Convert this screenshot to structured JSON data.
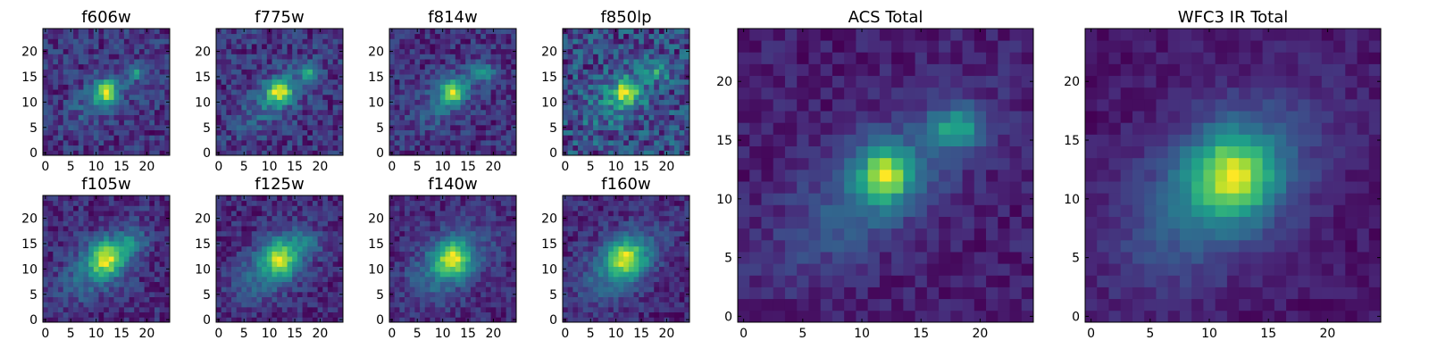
{
  "figure": {
    "description": "Multi-band galaxy cutout image grid"
  },
  "chart_data": [
    {
      "type": "heatmap",
      "title": "f606w",
      "xticks": [
        "0",
        "5",
        "10",
        "15",
        "20"
      ],
      "yticks": [
        "0",
        "5",
        "10",
        "15",
        "20"
      ],
      "xlim": [
        -0.5,
        24.5
      ],
      "ylim": [
        -0.5,
        24.5
      ],
      "colormap": "viridis",
      "noise": 0.2,
      "seed": 11,
      "sources": [
        {
          "x": 12,
          "y": 12,
          "amp": 1.0,
          "sx": 1.5,
          "sy": 1.5
        },
        {
          "x": 18,
          "y": 16,
          "amp": 0.55,
          "sx": 1.4,
          "sy": 1.1
        },
        {
          "x": 11,
          "y": 11,
          "amp": 0.3,
          "sx": 5,
          "sy": 2.5,
          "angle": 40
        }
      ]
    },
    {
      "type": "heatmap",
      "title": "f775w",
      "xticks": [
        "0",
        "5",
        "10",
        "15",
        "20"
      ],
      "yticks": [
        "0",
        "5",
        "10",
        "15",
        "20"
      ],
      "xlim": [
        -0.5,
        24.5
      ],
      "ylim": [
        -0.5,
        24.5
      ],
      "colormap": "viridis",
      "noise": 0.2,
      "seed": 23,
      "sources": [
        {
          "x": 12,
          "y": 12,
          "amp": 1.0,
          "sx": 1.6,
          "sy": 1.6
        },
        {
          "x": 18,
          "y": 16,
          "amp": 0.55,
          "sx": 1.4,
          "sy": 1.2
        },
        {
          "x": 11,
          "y": 11,
          "amp": 0.35,
          "sx": 5.5,
          "sy": 2.6,
          "angle": 40
        }
      ]
    },
    {
      "type": "heatmap",
      "title": "f814w",
      "xticks": [
        "0",
        "5",
        "10",
        "15",
        "20"
      ],
      "yticks": [
        "0",
        "5",
        "10",
        "15",
        "20"
      ],
      "xlim": [
        -0.5,
        24.5
      ],
      "ylim": [
        -0.5,
        24.5
      ],
      "colormap": "viridis",
      "noise": 0.2,
      "seed": 37,
      "sources": [
        {
          "x": 12,
          "y": 12,
          "amp": 1.0,
          "sx": 1.6,
          "sy": 1.6
        },
        {
          "x": 18,
          "y": 16,
          "amp": 0.55,
          "sx": 1.5,
          "sy": 1.2
        },
        {
          "x": 11,
          "y": 11,
          "amp": 0.35,
          "sx": 5.5,
          "sy": 2.6,
          "angle": 40
        }
      ]
    },
    {
      "type": "heatmap",
      "title": "f850lp",
      "xticks": [
        "0",
        "5",
        "10",
        "15",
        "20"
      ],
      "yticks": [
        "0",
        "5",
        "10",
        "15",
        "20"
      ],
      "xlim": [
        -0.5,
        24.5
      ],
      "ylim": [
        -0.5,
        24.5
      ],
      "colormap": "viridis",
      "noise": 0.34,
      "seed": 41,
      "sources": [
        {
          "x": 12,
          "y": 12,
          "amp": 0.9,
          "sx": 1.8,
          "sy": 1.8
        },
        {
          "x": 18,
          "y": 16,
          "amp": 0.45,
          "sx": 1.6,
          "sy": 1.3
        },
        {
          "x": 11,
          "y": 11,
          "amp": 0.35,
          "sx": 5.5,
          "sy": 3,
          "angle": 40
        }
      ]
    },
    {
      "type": "heatmap",
      "title": "f105w",
      "xticks": [
        "0",
        "5",
        "10",
        "15",
        "20"
      ],
      "yticks": [
        "0",
        "5",
        "10",
        "15",
        "20"
      ],
      "xlim": [
        -0.5,
        24.5
      ],
      "ylim": [
        -0.5,
        24.5
      ],
      "colormap": "viridis",
      "noise": 0.18,
      "seed": 53,
      "sources": [
        {
          "x": 12,
          "y": 12,
          "amp": 1.0,
          "sx": 2.2,
          "sy": 2.2
        },
        {
          "x": 17,
          "y": 15,
          "amp": 0.35,
          "sx": 2,
          "sy": 1.6
        },
        {
          "x": 11,
          "y": 11,
          "amp": 0.5,
          "sx": 6,
          "sy": 3.2,
          "angle": 40
        }
      ]
    },
    {
      "type": "heatmap",
      "title": "f125w",
      "xticks": [
        "0",
        "5",
        "10",
        "15",
        "20"
      ],
      "yticks": [
        "0",
        "5",
        "10",
        "15",
        "20"
      ],
      "xlim": [
        -0.5,
        24.5
      ],
      "ylim": [
        -0.5,
        24.5
      ],
      "colormap": "viridis",
      "noise": 0.18,
      "seed": 67,
      "sources": [
        {
          "x": 12,
          "y": 12,
          "amp": 1.0,
          "sx": 2.2,
          "sy": 2.4
        },
        {
          "x": 17,
          "y": 15,
          "amp": 0.35,
          "sx": 2,
          "sy": 1.6
        },
        {
          "x": 11,
          "y": 11,
          "amp": 0.5,
          "sx": 6,
          "sy": 3.4,
          "angle": 40
        }
      ]
    },
    {
      "type": "heatmap",
      "title": "f140w",
      "xticks": [
        "0",
        "5",
        "10",
        "15",
        "20"
      ],
      "yticks": [
        "0",
        "5",
        "10",
        "15",
        "20"
      ],
      "xlim": [
        -0.5,
        24.5
      ],
      "ylim": [
        -0.5,
        24.5
      ],
      "colormap": "viridis",
      "noise": 0.16,
      "seed": 79,
      "sources": [
        {
          "x": 12,
          "y": 12,
          "amp": 1.0,
          "sx": 2.3,
          "sy": 2.3
        },
        {
          "x": 11,
          "y": 11,
          "amp": 0.5,
          "sx": 6,
          "sy": 3.6,
          "angle": 40
        }
      ]
    },
    {
      "type": "heatmap",
      "title": "f160w",
      "xticks": [
        "0",
        "5",
        "10",
        "15",
        "20"
      ],
      "yticks": [
        "0",
        "5",
        "10",
        "15",
        "20"
      ],
      "xlim": [
        -0.5,
        24.5
      ],
      "ylim": [
        -0.5,
        24.5
      ],
      "colormap": "viridis",
      "noise": 0.16,
      "seed": 83,
      "sources": [
        {
          "x": 12,
          "y": 12,
          "amp": 1.0,
          "sx": 2.4,
          "sy": 2.4
        },
        {
          "x": 11,
          "y": 11,
          "amp": 0.5,
          "sx": 6.2,
          "sy": 3.6,
          "angle": 40
        }
      ]
    },
    {
      "type": "heatmap",
      "title": "ACS Total",
      "xticks": [
        "0",
        "5",
        "10",
        "15",
        "20"
      ],
      "yticks": [
        "0",
        "5",
        "10",
        "15",
        "20"
      ],
      "xlim": [
        -0.5,
        24.5
      ],
      "ylim": [
        -0.5,
        24.5
      ],
      "colormap": "viridis",
      "noise": 0.1,
      "seed": 97,
      "sources": [
        {
          "x": 12,
          "y": 12,
          "amp": 1.0,
          "sx": 1.5,
          "sy": 1.6
        },
        {
          "x": 18,
          "y": 16,
          "amp": 0.65,
          "sx": 1.4,
          "sy": 1.2
        },
        {
          "x": 11,
          "y": 11,
          "amp": 0.35,
          "sx": 6.5,
          "sy": 2.8,
          "angle": 40
        }
      ]
    },
    {
      "type": "heatmap",
      "title": "WFC3 IR Total",
      "xticks": [
        "0",
        "5",
        "10",
        "15",
        "20"
      ],
      "yticks": [
        "0",
        "5",
        "10",
        "15",
        "20"
      ],
      "xlim": [
        -0.5,
        24.5
      ],
      "ylim": [
        -0.5,
        24.5
      ],
      "colormap": "viridis",
      "noise": 0.08,
      "seed": 101,
      "sources": [
        {
          "x": 12,
          "y": 12,
          "amp": 1.0,
          "sx": 2.3,
          "sy": 2.3
        },
        {
          "x": 11,
          "y": 11,
          "amp": 0.5,
          "sx": 6.5,
          "sy": 3.8,
          "angle": 40
        }
      ]
    }
  ]
}
